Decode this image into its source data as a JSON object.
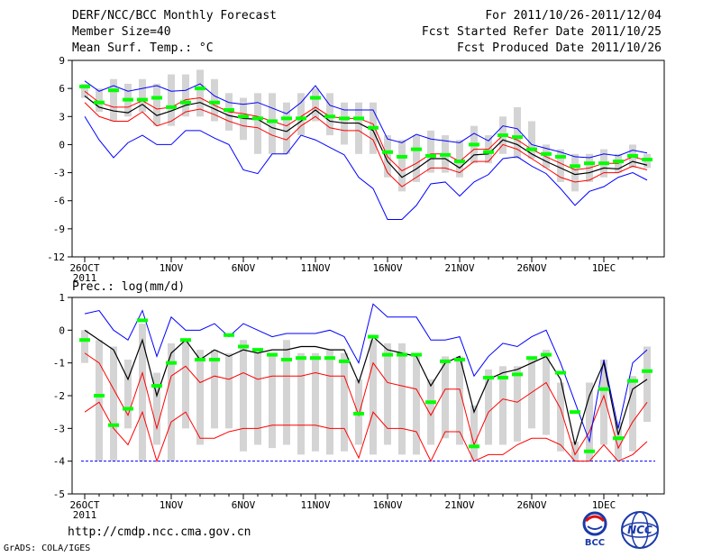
{
  "header": {
    "title": "DERF/NCC/BCC Monthly Forecast",
    "member_size": "Member Size=40",
    "panel1_label": "Mean Surf. Temp.: °C",
    "for_range": "For 2011/10/26-2011/12/04",
    "fcst_started": "Fcst Started Refer Date 2011/10/25",
    "fcst_produced": "Fcst Produced Date 2011/10/26"
  },
  "footer": {
    "url": "http://cmdp.ncc.cma.gov.cn",
    "grads": "GrADS: COLA/IGES",
    "logo1_text": "BCC",
    "logo2_text": "NCC"
  },
  "colors": {
    "box": "#d4d4d4",
    "mean": "#00ff00",
    "ensemble_mean": "#000000",
    "inner_band": "#ff0000",
    "outer_band": "#0000ff",
    "baseline": "#0000ff"
  },
  "chart_data": [
    {
      "type": "line",
      "title": "Mean Surf. Temp.: °C",
      "ylim": [
        -12,
        9
      ],
      "yticks": [
        -12,
        -9,
        -6,
        -3,
        0,
        3,
        6,
        9
      ],
      "xticks": [
        {
          "i": 0,
          "label": "26OCT",
          "sub": "2011"
        },
        {
          "i": 6,
          "label": "1NOV"
        },
        {
          "i": 11,
          "label": "6NOV"
        },
        {
          "i": 16,
          "label": "11NOV"
        },
        {
          "i": 21,
          "label": "16NOV"
        },
        {
          "i": 26,
          "label": "21NOV"
        },
        {
          "i": 31,
          "label": "26NOV"
        },
        {
          "i": 36,
          "label": "1DEC"
        }
      ],
      "x_count": 40,
      "series": [
        {
          "name": "max",
          "values": [
            6.8,
            5.7,
            6.3,
            5.7,
            6.0,
            6.3,
            5.7,
            5.8,
            6.5,
            5.2,
            4.5,
            4.3,
            4.5,
            3.9,
            3.3,
            4.5,
            6.3,
            4.2,
            3.7,
            3.7,
            3.7,
            0.6,
            0.2,
            1.1,
            0.6,
            0.4,
            0.2,
            1.2,
            0.4,
            2.0,
            1.7,
            0.0,
            -0.4,
            -0.8,
            -1.3,
            -1.4,
            -1.0,
            -1.2,
            -0.6,
            -0.9
          ]
        },
        {
          "name": "ens_mean",
          "values": [
            5.2,
            4.0,
            3.6,
            3.4,
            4.3,
            3.1,
            3.6,
            4.2,
            4.5,
            3.8,
            3.1,
            2.8,
            2.7,
            1.8,
            1.4,
            2.5,
            3.7,
            2.5,
            2.3,
            2.3,
            1.5,
            -1.8,
            -3.5,
            -2.6,
            -1.5,
            -1.5,
            -2.5,
            -1.1,
            -1.0,
            0.5,
            0.0,
            -1.0,
            -1.8,
            -2.5,
            -3.2,
            -3.0,
            -2.5,
            -2.6,
            -1.8,
            -2.2
          ]
        },
        {
          "name": "upper_red",
          "values": [
            5.7,
            4.5,
            4.0,
            4.0,
            4.7,
            3.8,
            4.0,
            4.8,
            5.0,
            4.2,
            3.5,
            3.3,
            3.0,
            2.5,
            2.0,
            3.0,
            4.0,
            3.0,
            2.8,
            2.8,
            2.2,
            -1.3,
            -2.8,
            -2.0,
            -1.0,
            -1.0,
            -1.8,
            -0.5,
            -0.5,
            1.0,
            0.5,
            -0.5,
            -1.3,
            -2.0,
            -2.7,
            -2.5,
            -2.0,
            -2.0,
            -1.3,
            -1.7
          ]
        },
        {
          "name": "lower_red",
          "values": [
            4.5,
            3.0,
            2.5,
            2.5,
            3.5,
            2.0,
            2.5,
            3.5,
            3.8,
            3.2,
            2.5,
            2.0,
            1.8,
            1.0,
            0.5,
            2.0,
            3.0,
            1.8,
            1.5,
            1.5,
            0.5,
            -3.0,
            -4.5,
            -3.5,
            -2.5,
            -2.5,
            -3.0,
            -1.8,
            -1.8,
            0.0,
            -0.5,
            -1.5,
            -2.5,
            -3.5,
            -4.0,
            -3.8,
            -3.0,
            -3.0,
            -2.3,
            -2.7
          ]
        },
        {
          "name": "min",
          "values": [
            3.0,
            0.5,
            -1.4,
            0.2,
            1.0,
            0.0,
            0.0,
            1.5,
            1.5,
            0.7,
            0.0,
            -2.7,
            -3.1,
            -1.0,
            -1.0,
            1.0,
            0.5,
            -0.3,
            -1.1,
            -3.5,
            -4.7,
            -8.0,
            -8.0,
            -6.5,
            -4.2,
            -4.0,
            -5.5,
            -4.0,
            -3.2,
            -1.5,
            -1.3,
            -2.3,
            -3.1,
            -4.7,
            -6.5,
            -5.0,
            -4.5,
            -3.5,
            -3.0,
            -3.8
          ]
        },
        {
          "name": "box_top",
          "values": [
            6.5,
            6.0,
            7.0,
            6.5,
            7.0,
            6.5,
            7.5,
            7.5,
            8.0,
            7.0,
            5.5,
            5.0,
            5.5,
            5.5,
            4.5,
            5.5,
            6.0,
            5.5,
            4.5,
            4.5,
            4.5,
            1.0,
            0.5,
            1.0,
            1.5,
            1.0,
            0.5,
            2.0,
            1.0,
            3.0,
            4.0,
            2.5,
            0.0,
            -0.5,
            -1.0,
            -1.0,
            -0.5,
            -1.0,
            0.0,
            -1.0
          ]
        },
        {
          "name": "box_bottom",
          "values": [
            5.0,
            3.5,
            2.5,
            3.0,
            3.5,
            2.0,
            2.0,
            3.0,
            3.0,
            2.5,
            1.5,
            0.5,
            -1.0,
            -1.0,
            -1.0,
            1.0,
            2.5,
            1.0,
            0.0,
            -1.0,
            -1.0,
            -3.5,
            -5.0,
            -4.0,
            -3.0,
            -3.0,
            -3.5,
            -2.0,
            -2.0,
            -1.0,
            -1.5,
            -1.5,
            -2.5,
            -4.0,
            -5.0,
            -4.0,
            -3.5,
            -3.0,
            -2.5,
            -2.5
          ]
        },
        {
          "name": "green_mean",
          "values": [
            6.2,
            4.5,
            5.8,
            4.8,
            4.8,
            5.0,
            4.0,
            4.5,
            6.0,
            4.5,
            3.7,
            3.0,
            2.8,
            2.5,
            2.8,
            2.8,
            5.0,
            3.0,
            2.8,
            2.8,
            1.8,
            -0.8,
            -1.3,
            -0.5,
            -1.2,
            -1.1,
            -1.8,
            0.0,
            -0.8,
            1.0,
            0.8,
            -0.5,
            -1.0,
            -1.3,
            -2.3,
            -2.0,
            -2.0,
            -1.8,
            -1.2,
            -1.6
          ]
        }
      ]
    },
    {
      "type": "line",
      "title": "Prec.: log(mm/d)",
      "ylim": [
        -5,
        1
      ],
      "yticks": [
        -5,
        -4,
        -3,
        -2,
        -1,
        0,
        1
      ],
      "xticks": [
        {
          "i": 0,
          "label": "26OCT",
          "sub": "2011"
        },
        {
          "i": 6,
          "label": "1NOV"
        },
        {
          "i": 11,
          "label": "6NOV"
        },
        {
          "i": 16,
          "label": "11NOV"
        },
        {
          "i": 21,
          "label": "16NOV"
        },
        {
          "i": 26,
          "label": "21NOV"
        },
        {
          "i": 31,
          "label": "26NOV"
        },
        {
          "i": 36,
          "label": "1DEC"
        }
      ],
      "x_count": 40,
      "baseline": -4,
      "series": [
        {
          "name": "max",
          "values": [
            0.5,
            0.6,
            0.0,
            -0.3,
            0.6,
            -0.8,
            0.4,
            0.0,
            0.0,
            0.2,
            -0.2,
            0.2,
            0.0,
            -0.2,
            -0.1,
            -0.1,
            -0.1,
            0.0,
            -0.2,
            -1.0,
            0.8,
            0.4,
            0.4,
            0.4,
            -0.3,
            -0.3,
            -0.2,
            -1.4,
            -0.8,
            -0.4,
            -0.5,
            -0.2,
            0.0,
            -1.0,
            -2.2,
            -3.4,
            -0.9,
            -3.0,
            -1.0,
            -0.6
          ]
        },
        {
          "name": "ens_mean",
          "values": [
            0.0,
            -0.3,
            -0.6,
            -1.5,
            -0.3,
            -2.0,
            -0.7,
            -0.3,
            -0.9,
            -0.6,
            -0.8,
            -0.6,
            -0.7,
            -0.6,
            -0.6,
            -0.5,
            -0.5,
            -0.6,
            -0.6,
            -1.6,
            -0.2,
            -0.6,
            -0.7,
            -0.8,
            -1.7,
            -1.0,
            -0.8,
            -2.5,
            -1.5,
            -1.3,
            -1.2,
            -1.0,
            -0.8,
            -1.5,
            -3.5,
            -2.0,
            -1.0,
            -3.2,
            -1.8,
            -1.5
          ]
        },
        {
          "name": "upper_red",
          "values": [
            -0.7,
            -1.0,
            -1.8,
            -2.6,
            -1.3,
            -3.0,
            -1.4,
            -1.1,
            -1.6,
            -1.4,
            -1.5,
            -1.3,
            -1.5,
            -1.4,
            -1.4,
            -1.4,
            -1.3,
            -1.4,
            -1.4,
            -2.6,
            -1.0,
            -1.6,
            -1.7,
            -1.8,
            -2.6,
            -1.8,
            -1.8,
            -3.5,
            -2.5,
            -2.1,
            -2.2,
            -1.9,
            -1.6,
            -2.4,
            -3.8,
            -3.1,
            -2.0,
            -3.6,
            -2.8,
            -2.2
          ]
        },
        {
          "name": "lower_red",
          "values": [
            -2.5,
            -2.2,
            -3.0,
            -3.5,
            -2.5,
            -4.0,
            -2.8,
            -2.5,
            -3.3,
            -3.3,
            -3.1,
            -3.0,
            -3.0,
            -2.9,
            -2.9,
            -2.9,
            -2.9,
            -3.0,
            -3.0,
            -3.9,
            -2.5,
            -3.0,
            -3.0,
            -3.1,
            -4.0,
            -3.1,
            -3.1,
            -4.0,
            -3.8,
            -3.8,
            -3.5,
            -3.3,
            -3.3,
            -3.5,
            -4.0,
            -4.0,
            -3.5,
            -4.0,
            -3.8,
            -3.4
          ]
        },
        {
          "name": "min",
          "values": [
            -4.0,
            -4.0,
            -4.0,
            -4.0,
            -4.0,
            -4.0,
            -4.0,
            -4.0,
            -4.0,
            -4.0,
            -4.0,
            -4.0,
            -4.0,
            -4.0,
            -4.0,
            -4.0,
            -4.0,
            -4.0,
            -4.0,
            -4.0,
            -4.0,
            -4.0,
            -4.0,
            -4.0,
            -4.0,
            -4.0,
            -4.0,
            -4.0,
            -4.0,
            -4.0,
            -4.0,
            -4.0,
            -4.0,
            -4.0,
            -4.0,
            -4.0,
            -4.0,
            -4.0,
            -4.0,
            -4.0
          ]
        },
        {
          "name": "box_top",
          "values": [
            0.0,
            -0.3,
            -0.5,
            -0.9,
            0.2,
            -1.3,
            -0.4,
            -0.3,
            -0.6,
            -0.6,
            -0.7,
            -0.3,
            -0.7,
            -0.7,
            -0.3,
            -0.7,
            -0.7,
            -0.6,
            -0.7,
            -1.5,
            -0.3,
            -0.4,
            -0.4,
            -0.7,
            -1.5,
            -0.8,
            -0.8,
            -2.3,
            -1.2,
            -1.1,
            -1.1,
            -0.9,
            -0.6,
            -1.6,
            -3.4,
            -1.6,
            -0.9,
            -2.8,
            -1.4,
            -0.5
          ]
        },
        {
          "name": "box_bottom",
          "values": [
            -1.0,
            -4.0,
            -4.0,
            -3.0,
            -4.0,
            -3.5,
            -4.0,
            -3.0,
            -3.5,
            -3.0,
            -3.0,
            -3.7,
            -3.5,
            -3.6,
            -3.5,
            -3.8,
            -3.7,
            -3.8,
            -3.7,
            -3.5,
            -3.8,
            -3.5,
            -3.8,
            -3.8,
            -3.5,
            -3.3,
            -3.5,
            -4.0,
            -3.5,
            -3.5,
            -3.4,
            -3.0,
            -3.2,
            -3.7,
            -4.0,
            -4.0,
            -3.5,
            -4.0,
            -3.7,
            -2.8
          ]
        },
        {
          "name": "green_mean",
          "values": [
            -0.3,
            -2.0,
            -2.9,
            -2.4,
            0.3,
            -1.7,
            -1.0,
            -0.3,
            -0.9,
            -0.9,
            -0.15,
            -0.5,
            -0.6,
            -0.75,
            -0.9,
            -0.85,
            -0.85,
            -0.85,
            -0.95,
            -2.55,
            -0.2,
            -0.75,
            -0.75,
            -0.75,
            -2.2,
            -0.95,
            -0.9,
            -3.55,
            -1.45,
            -1.45,
            -1.35,
            -0.85,
            -0.75,
            -1.3,
            -2.5,
            -3.7,
            -1.8,
            -3.3,
            -1.55,
            -1.25
          ]
        }
      ]
    }
  ]
}
